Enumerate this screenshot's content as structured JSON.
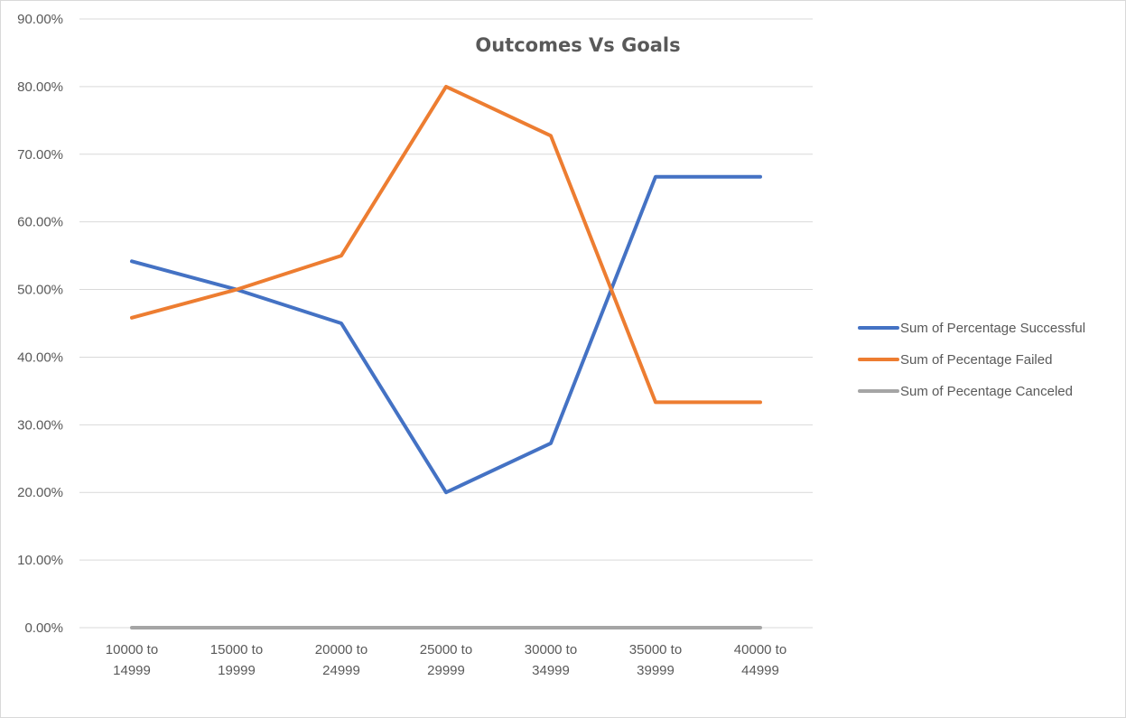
{
  "chart_data": {
    "type": "line",
    "title": "Outcomes Vs Goals",
    "xlabel": "",
    "ylabel": "",
    "categories": [
      [
        "10000 to",
        "14999"
      ],
      [
        "15000 to",
        "19999"
      ],
      [
        "20000 to",
        "24999"
      ],
      [
        "25000 to",
        "29999"
      ],
      [
        "30000 to",
        "34999"
      ],
      [
        "35000 to",
        "39999"
      ],
      [
        "40000 to",
        "44999"
      ]
    ],
    "y_ticks": [
      "0.00%",
      "10.00%",
      "20.00%",
      "30.00%",
      "40.00%",
      "50.00%",
      "60.00%",
      "70.00%",
      "80.00%",
      "90.00%"
    ],
    "ylim": [
      0,
      90
    ],
    "grid": true,
    "legend_position": "right",
    "series": [
      {
        "name": "Sum of Percentage Successful",
        "color": "#4472c4",
        "values": [
          54.17,
          50.0,
          45.0,
          20.0,
          27.27,
          66.67,
          66.67
        ]
      },
      {
        "name": "Sum of Pecentage Failed",
        "color": "#ed7d31",
        "values": [
          45.83,
          50.0,
          55.0,
          80.0,
          72.73,
          33.33,
          33.33
        ]
      },
      {
        "name": "Sum of Pecentage Canceled",
        "color": "#a5a5a5",
        "values": [
          0,
          0,
          0,
          0,
          0,
          0,
          0
        ]
      }
    ]
  }
}
